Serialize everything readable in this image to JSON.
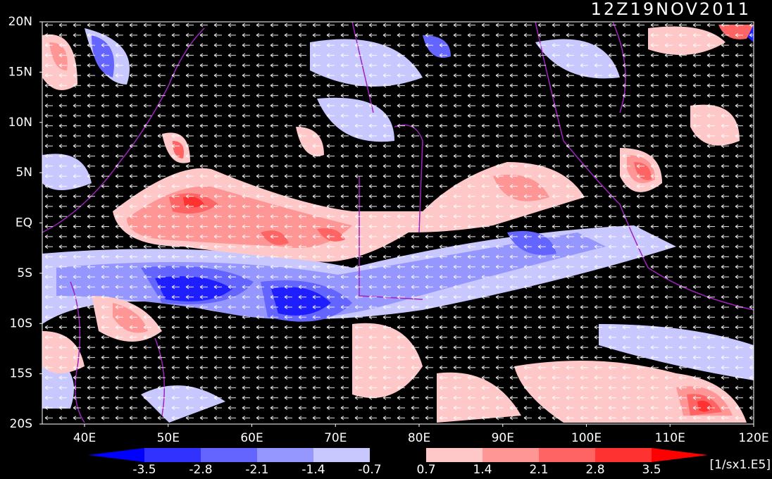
{
  "title": "12Z19NOV2011",
  "map": {
    "lat_labels": [
      "20N",
      "15N",
      "10N",
      "5N",
      "EQ",
      "5S",
      "10S",
      "15S",
      "20S"
    ],
    "lon_labels": [
      "40E",
      "50E",
      "60E",
      "70E",
      "80E",
      "90E",
      "100E",
      "110E",
      "120E"
    ]
  },
  "colorbar": {
    "labels": [
      "-3.5",
      "-2.8",
      "-2.1",
      "-1.4",
      "-0.7",
      "0.7",
      "1.4",
      "2.1",
      "2.8",
      "3.5"
    ],
    "unit": "[1/sx1.E5]"
  }
}
